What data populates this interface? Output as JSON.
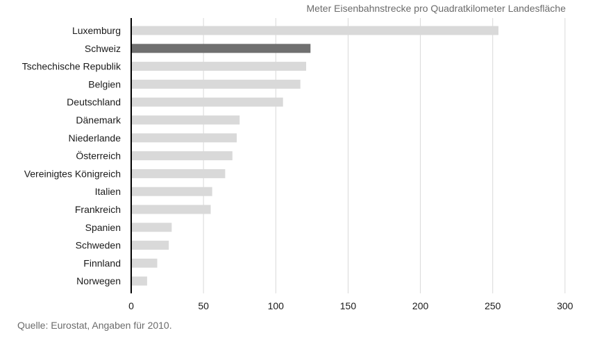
{
  "subtitle": "Meter Eisenbahnstrecke pro Quadratkilometer Landesfläche",
  "source": "Quelle: Eurostat, Angaben für 2010.",
  "colors": {
    "bar_default": "#d9d9d9",
    "bar_highlight": "#707070",
    "axis": "#000000",
    "grid": "#d8d8d8",
    "text": "#1a1a1a"
  },
  "chart_data": {
    "type": "bar",
    "orientation": "horizontal",
    "title": "Meter Eisenbahnstrecke pro Quadratkilometer Landesfläche",
    "categories": [
      "Luxemburg",
      "Schweiz",
      "Tschechische Republik",
      "Belgien",
      "Deutschland",
      "Dänemark",
      "Niederlande",
      "Österreich",
      "Vereinigtes Königreich",
      "Italien",
      "Frankreich",
      "Spanien",
      "Schweden",
      "Finnland",
      "Norwegen"
    ],
    "values": [
      254,
      124,
      121,
      117,
      105,
      75,
      73,
      70,
      65,
      56,
      55,
      28,
      26,
      18,
      11
    ],
    "highlight": "Schweiz",
    "xlim": [
      0,
      300
    ],
    "xticks": [
      0,
      50,
      100,
      150,
      200,
      250,
      300
    ],
    "grid": true
  }
}
